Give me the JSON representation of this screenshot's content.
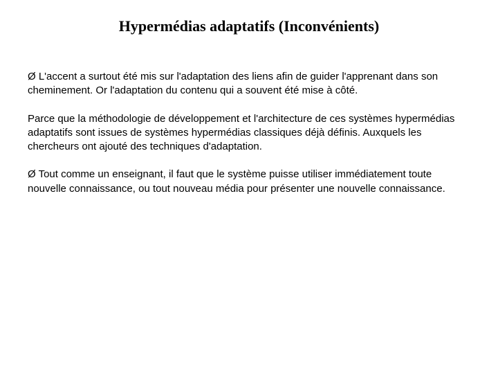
{
  "slide": {
    "title": "Hypermédias adaptatifs (Inconvénients)",
    "paragraphs": [
      "Ø L'accent a surtout été mis sur l'adaptation des liens afin de guider l'apprenant dans son cheminement. Or l'adaptation du contenu qui a souvent été mise à côté.",
      "Parce que la méthodologie de développement et l'architecture de ces systèmes hypermédias adaptatifs sont issues de systèmes hypermédias classiques déjà définis. Auxquels les chercheurs ont ajouté des techniques d'adaptation.",
      "Ø Tout comme un enseignant, il faut que le système puisse utiliser immédiatement toute nouvelle connaissance, ou tout nouveau média pour présenter une nouvelle connaissance."
    ],
    "colors": {
      "background": "#ffffff",
      "text": "#000000"
    },
    "typography": {
      "title_font": "Times New Roman",
      "title_fontsize": 22,
      "title_weight": "bold",
      "body_font": "Arial",
      "body_fontsize": 15
    }
  }
}
